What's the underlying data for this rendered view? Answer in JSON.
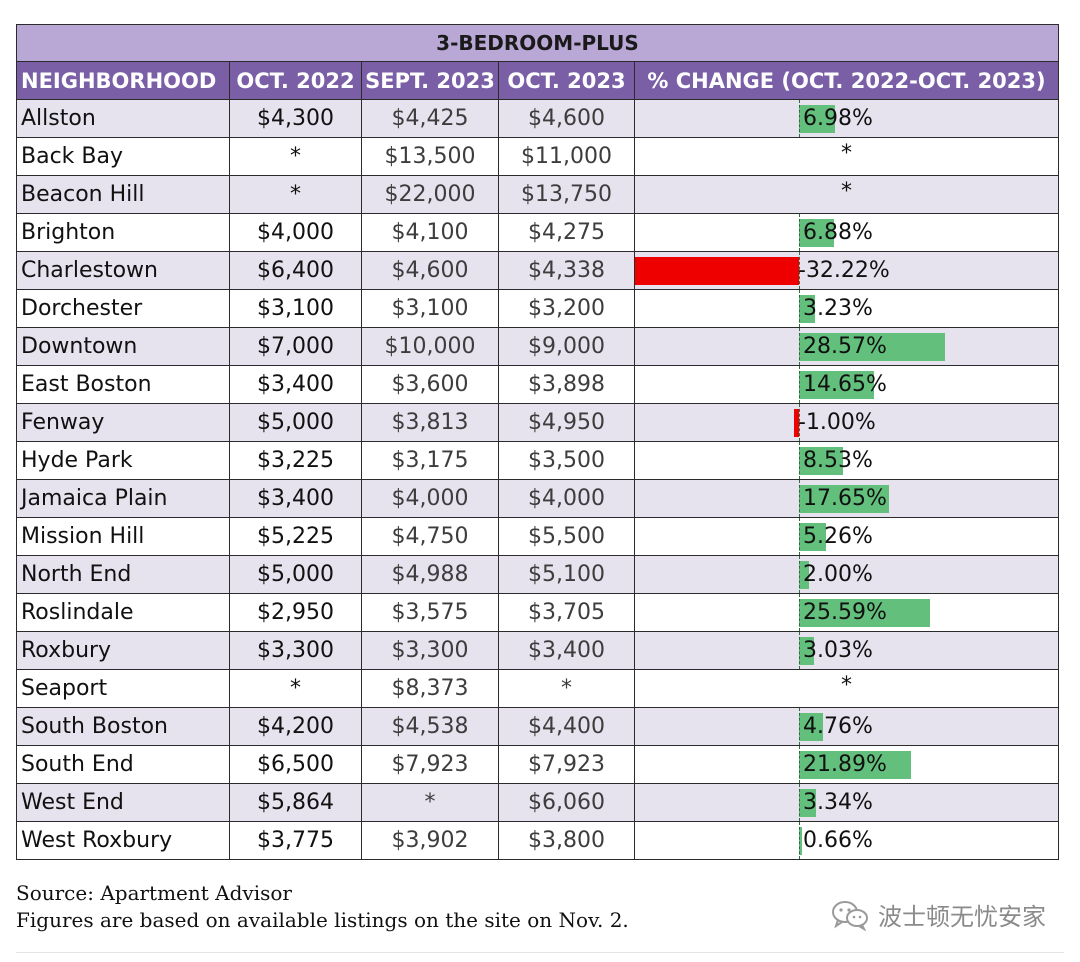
{
  "chart_data": {
    "type": "table",
    "title": "3-BEDROOM-PLUS",
    "columns": [
      "NEIGHBORHOOD",
      "OCT. 2022",
      "SEPT. 2023",
      "OCT. 2023",
      "% CHANGE (OCT. 2022-OCT. 2023)"
    ],
    "rows": [
      {
        "name": "Allston",
        "oct2022": "$4,300",
        "sept2023": "$4,425",
        "oct2023": "$4,600",
        "change_label": "6.98%",
        "change": 6.98
      },
      {
        "name": "Back Bay",
        "oct2022": "*",
        "sept2023": "$13,500",
        "oct2023": "$11,000",
        "change_label": "*",
        "change": null
      },
      {
        "name": "Beacon Hill",
        "oct2022": "*",
        "sept2023": "$22,000",
        "oct2023": "$13,750",
        "change_label": "*",
        "change": null
      },
      {
        "name": "Brighton",
        "oct2022": "$4,000",
        "sept2023": "$4,100",
        "oct2023": "$4,275",
        "change_label": "6.88%",
        "change": 6.88
      },
      {
        "name": "Charlestown",
        "oct2022": "$6,400",
        "sept2023": "$4,600",
        "oct2023": "$4,338",
        "change_label": "-32.22%",
        "change": -32.22
      },
      {
        "name": "Dorchester",
        "oct2022": "$3,100",
        "sept2023": "$3,100",
        "oct2023": "$3,200",
        "change_label": "3.23%",
        "change": 3.23
      },
      {
        "name": "Downtown",
        "oct2022": "$7,000",
        "sept2023": "$10,000",
        "oct2023": "$9,000",
        "change_label": "28.57%",
        "change": 28.57
      },
      {
        "name": "East Boston",
        "oct2022": "$3,400",
        "sept2023": "$3,600",
        "oct2023": "$3,898",
        "change_label": "14.65%",
        "change": 14.65
      },
      {
        "name": "Fenway",
        "oct2022": "$5,000",
        "sept2023": "$3,813",
        "oct2023": "$4,950",
        "change_label": "-1.00%",
        "change": -1.0
      },
      {
        "name": "Hyde Park",
        "oct2022": "$3,225",
        "sept2023": "$3,175",
        "oct2023": "$3,500",
        "change_label": "8.53%",
        "change": 8.53
      },
      {
        "name": "Jamaica Plain",
        "oct2022": "$3,400",
        "sept2023": "$4,000",
        "oct2023": "$4,000",
        "change_label": "17.65%",
        "change": 17.65
      },
      {
        "name": "Mission Hill",
        "oct2022": "$5,225",
        "sept2023": "$4,750",
        "oct2023": "$5,500",
        "change_label": "5.26%",
        "change": 5.26
      },
      {
        "name": "North End",
        "oct2022": "$5,000",
        "sept2023": "$4,988",
        "oct2023": "$5,100",
        "change_label": "2.00%",
        "change": 2.0
      },
      {
        "name": "Roslindale",
        "oct2022": "$2,950",
        "sept2023": "$3,575",
        "oct2023": "$3,705",
        "change_label": "25.59%",
        "change": 25.59
      },
      {
        "name": "Roxbury",
        "oct2022": "$3,300",
        "sept2023": "$3,300",
        "oct2023": "$3,400",
        "change_label": "3.03%",
        "change": 3.03
      },
      {
        "name": "Seaport",
        "oct2022": "*",
        "sept2023": "$8,373",
        "oct2023": "*",
        "change_label": "*",
        "change": null
      },
      {
        "name": "South Boston",
        "oct2022": "$4,200",
        "sept2023": "$4,538",
        "oct2023": "$4,400",
        "change_label": "4.76%",
        "change": 4.76
      },
      {
        "name": "South End",
        "oct2022": "$6,500",
        "sept2023": "$7,923",
        "oct2023": "$7,923",
        "change_label": "21.89%",
        "change": 21.89
      },
      {
        "name": "West End",
        "oct2022": "$5,864",
        "sept2023": "*",
        "oct2023": "$6,060",
        "change_label": "3.34%",
        "change": 3.34
      },
      {
        "name": "West Roxbury",
        "oct2022": "$3,775",
        "sept2023": "$3,902",
        "oct2023": "$3,800",
        "change_label": "0.66%",
        "change": 0.66
      }
    ],
    "positive_color": "#63bf7c",
    "negative_color": "#ef0000",
    "header_color": "#7a5fa7",
    "title_color": "#b9a8d6",
    "stripe_color": "#e6e3ee"
  },
  "notes": {
    "source": "Source: Apartment Advisor",
    "footnote": "Figures are based on available listings on the site on Nov. 2."
  },
  "watermark": {
    "text": "波士顿无忧安家",
    "icon": "wechat-icon"
  }
}
